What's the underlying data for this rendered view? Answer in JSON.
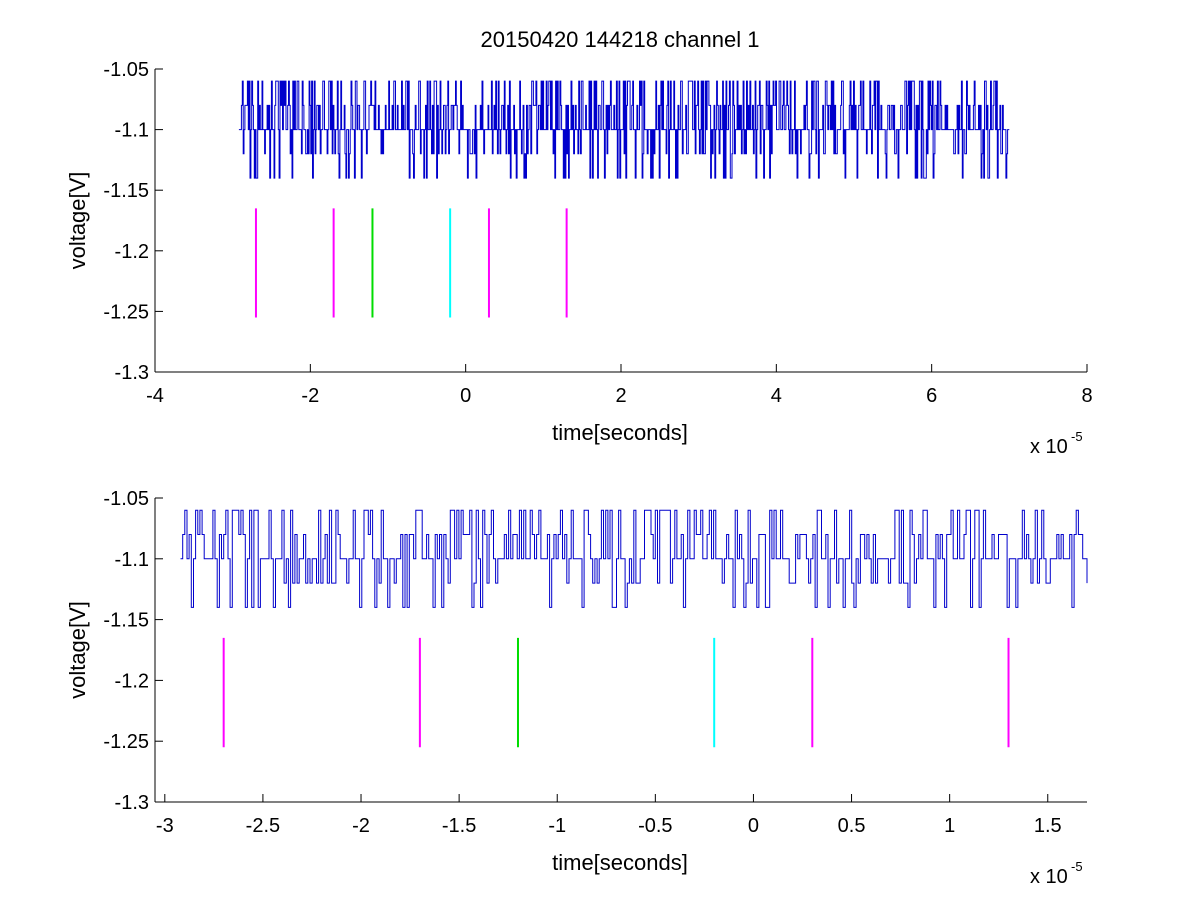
{
  "figure": {
    "title": "20150420 144218 channel 1",
    "background": "#ffffff"
  },
  "chart_data": [
    {
      "type": "line",
      "xlabel": "time[seconds]",
      "ylabel": "voltage[V]",
      "xlim": [
        -4,
        8
      ],
      "ylim": [
        -1.3,
        -1.05
      ],
      "x_ticks": [
        -4,
        -2,
        0,
        2,
        4,
        6,
        8
      ],
      "y_ticks": [
        -1.05,
        -1.1,
        -1.15,
        -1.2,
        -1.25,
        -1.3
      ],
      "x_tick_labels": [
        "-4",
        "-2",
        "0",
        "2",
        "4",
        "6",
        "8"
      ],
      "y_tick_labels": [
        "-1.05",
        "-1.1",
        "-1.15",
        "-1.2",
        "-1.25",
        "-1.3"
      ],
      "x_exponent": {
        "base": "x 10",
        "power": "-5"
      },
      "grid": false,
      "signal": {
        "color": "#0000cc",
        "x_start": -2.92,
        "x_end": 7.0,
        "baseline": -1.1,
        "levels": [
          -1.14,
          -1.12,
          -1.1,
          -1.08,
          -1.06
        ]
      },
      "markers": [
        {
          "x": -2.7,
          "y_top": -1.165,
          "y_bottom": -1.255,
          "color": "#ff00ff"
        },
        {
          "x": -1.7,
          "y_top": -1.165,
          "y_bottom": -1.255,
          "color": "#ff00ff"
        },
        {
          "x": -1.2,
          "y_top": -1.165,
          "y_bottom": -1.255,
          "color": "#00dd00"
        },
        {
          "x": -0.2,
          "y_top": -1.165,
          "y_bottom": -1.255,
          "color": "#00ffff"
        },
        {
          "x": 0.3,
          "y_top": -1.165,
          "y_bottom": -1.255,
          "color": "#ff00ff"
        },
        {
          "x": 1.3,
          "y_top": -1.165,
          "y_bottom": -1.255,
          "color": "#ff00ff"
        }
      ]
    },
    {
      "type": "line",
      "xlabel": "time[seconds]",
      "ylabel": "voltage[V]",
      "xlim": [
        -3.05,
        1.7
      ],
      "ylim": [
        -1.3,
        -1.05
      ],
      "x_ticks": [
        -3,
        -2.5,
        -2,
        -1.5,
        -1,
        -0.5,
        0,
        0.5,
        1,
        1.5
      ],
      "y_ticks": [
        -1.05,
        -1.1,
        -1.15,
        -1.2,
        -1.25,
        -1.3
      ],
      "x_tick_labels": [
        "-3",
        "-2.5",
        "-2",
        "-1.5",
        "-1",
        "-0.5",
        "0",
        "0.5",
        "1",
        "1.5"
      ],
      "y_tick_labels": [
        "-1.05",
        "-1.1",
        "-1.15",
        "-1.2",
        "-1.25",
        "-1.3"
      ],
      "x_exponent": {
        "base": "x 10",
        "power": "-5"
      },
      "grid": false,
      "signal": {
        "color": "#0000cc",
        "x_start": -2.92,
        "x_end": 1.7,
        "baseline": -1.1,
        "levels": [
          -1.14,
          -1.12,
          -1.1,
          -1.08,
          -1.06
        ]
      },
      "markers": [
        {
          "x": -2.7,
          "y_top": -1.165,
          "y_bottom": -1.255,
          "color": "#ff00ff"
        },
        {
          "x": -1.7,
          "y_top": -1.165,
          "y_bottom": -1.255,
          "color": "#ff00ff"
        },
        {
          "x": -1.2,
          "y_top": -1.165,
          "y_bottom": -1.255,
          "color": "#00dd00"
        },
        {
          "x": -0.2,
          "y_top": -1.165,
          "y_bottom": -1.255,
          "color": "#00ffff"
        },
        {
          "x": 0.3,
          "y_top": -1.165,
          "y_bottom": -1.255,
          "color": "#ff00ff"
        },
        {
          "x": 1.3,
          "y_top": -1.165,
          "y_bottom": -1.255,
          "color": "#ff00ff"
        }
      ]
    }
  ]
}
